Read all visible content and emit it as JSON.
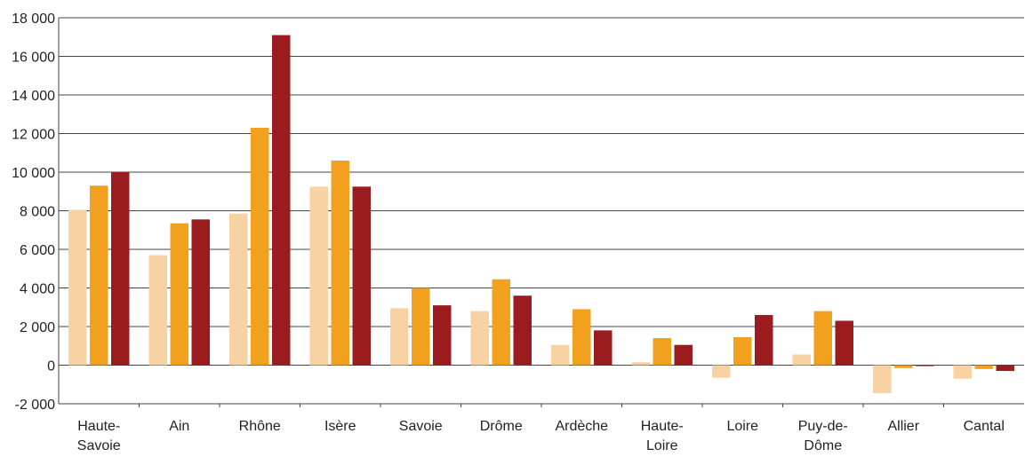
{
  "chart_data": {
    "type": "bar",
    "categories": [
      [
        "Haute-",
        "Savoie"
      ],
      [
        "Ain"
      ],
      [
        "Rhône"
      ],
      [
        "Isère"
      ],
      [
        "Savoie"
      ],
      [
        "Drôme"
      ],
      [
        "Ardèche"
      ],
      [
        "Haute-",
        "Loire"
      ],
      [
        "Loire"
      ],
      [
        "Puy-de-",
        "Dôme"
      ],
      [
        "Allier"
      ],
      [
        "Cantal"
      ]
    ],
    "series": [
      {
        "color": "#F9D2A3",
        "values": [
          8050,
          5700,
          7850,
          9250,
          2950,
          2800,
          1050,
          150,
          -650,
          550,
          -1450,
          -700
        ]
      },
      {
        "color": "#F2A11F",
        "values": [
          9300,
          7350,
          12300,
          10600,
          4000,
          4450,
          2900,
          1400,
          1450,
          2800,
          -150,
          -200
        ]
      },
      {
        "color": "#9B1C1F",
        "values": [
          10000,
          7550,
          17100,
          9250,
          3100,
          3600,
          1800,
          1050,
          2600,
          2300,
          -50,
          -300
        ]
      }
    ],
    "ylim": [
      -2000,
      18000
    ],
    "yticks": [
      -2000,
      0,
      2000,
      4000,
      6000,
      8000,
      10000,
      12000,
      14000,
      16000,
      18000
    ],
    "ytick_labels": [
      "-2 000",
      "0",
      "2 000",
      "4 000",
      "6 000",
      "8 000",
      "10 000",
      "12 000",
      "14 000",
      "16 000",
      "18 000"
    ],
    "grid": true,
    "title": "",
    "xlabel": "",
    "ylabel": ""
  }
}
